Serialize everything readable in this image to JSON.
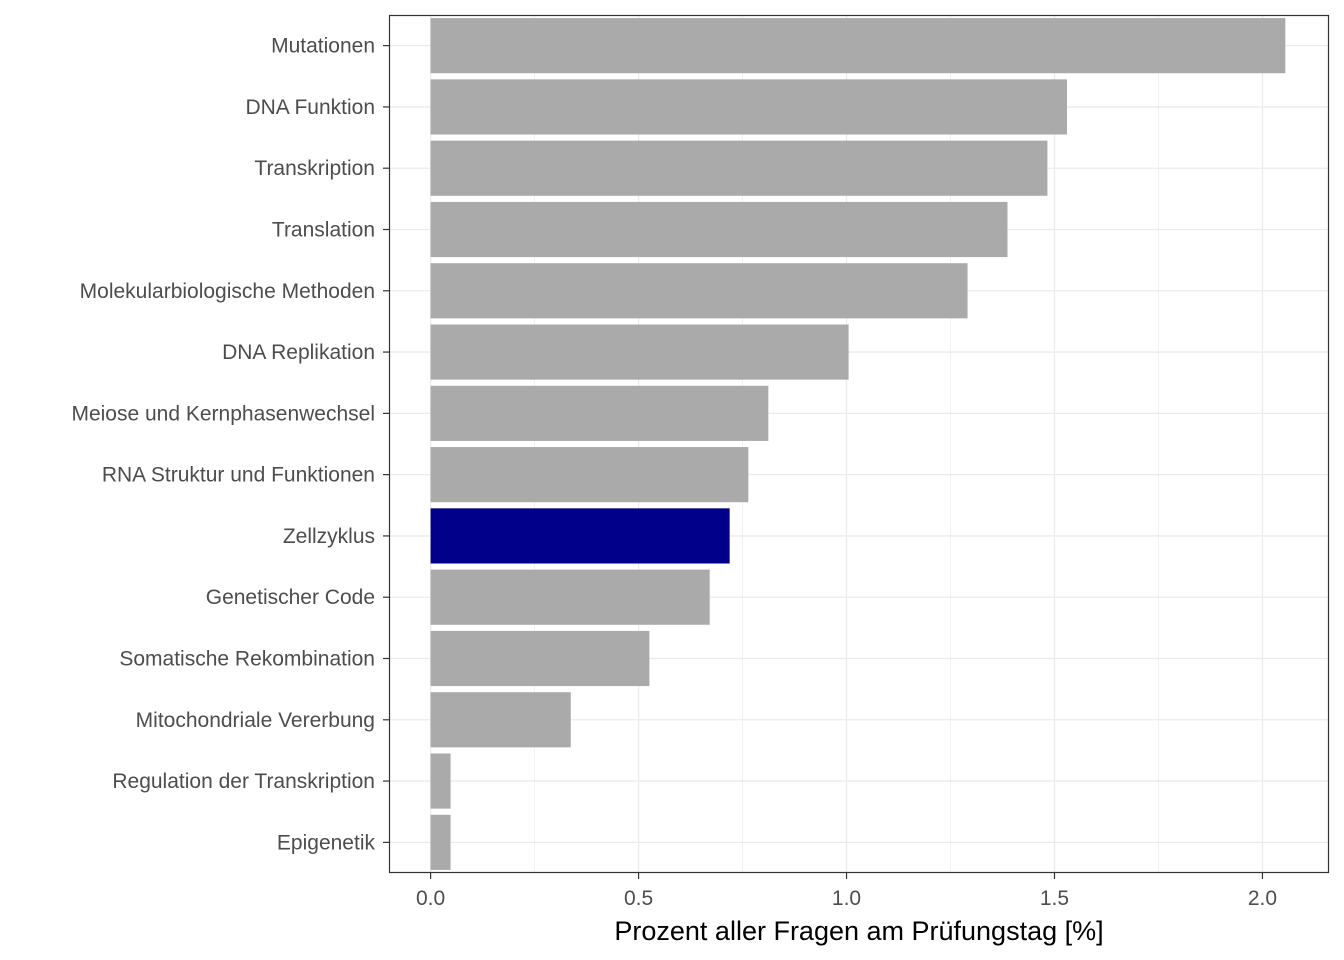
{
  "chart_data": {
    "type": "bar",
    "orientation": "horizontal",
    "title": "",
    "xlabel": "Prozent aller Fragen am Prüfungstag [%]",
    "ylabel": "",
    "xlim": [
      -0.1,
      2.16
    ],
    "xticks": [
      "0.0",
      "0.5",
      "1.0",
      "1.5",
      "2.0"
    ],
    "xtick_values": [
      0,
      0.5,
      1.0,
      1.5,
      2.0
    ],
    "grid": true,
    "categories": [
      "Mutationen",
      "DNA Funktion",
      "Transkription",
      "Translation",
      "Molekularbiologische Methoden",
      "DNA Replikation",
      "Meiose und Kernphasenwechsel",
      "RNA Struktur und Funktionen",
      "Zellzyklus",
      "Genetischer Code",
      "Somatische Rekombination",
      "Mitochondriale Vererbung",
      "Regulation der Transkription",
      "Epigenetik"
    ],
    "values": [
      2.055,
      1.53,
      1.483,
      1.387,
      1.291,
      1.005,
      0.812,
      0.764,
      0.719,
      0.671,
      0.526,
      0.337,
      0.048,
      0.048
    ],
    "highlight": "Zellzyklus",
    "colors": {
      "default": "#aaaaaa",
      "highlight": "#00008b"
    }
  }
}
